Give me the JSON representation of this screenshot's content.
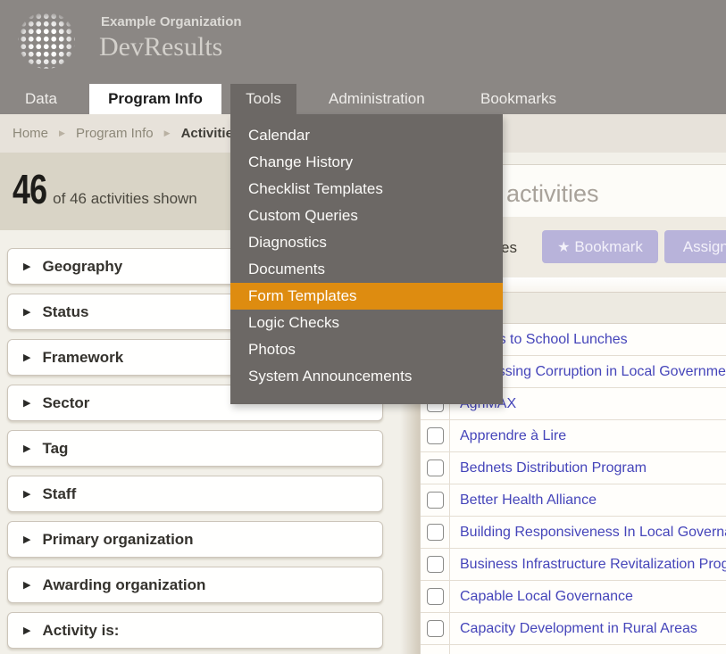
{
  "colors": {
    "header_bg": "#8B8784",
    "menu_bg": "#6C6865",
    "accent_orange": "#DE8C10",
    "link_blue": "#4545BA",
    "button_lavender": "#B8B3DA",
    "count_band_beige": "#D9D4C6",
    "page_bg": "#F2F0E9"
  },
  "header": {
    "org_name": "Example Organization",
    "product_name": "DevResults"
  },
  "nav": {
    "tabs": [
      {
        "label": "Data",
        "state": "normal"
      },
      {
        "label": "Program Info",
        "state": "active"
      },
      {
        "label": "Tools",
        "state": "open"
      },
      {
        "label": "Administration",
        "state": "normal"
      },
      {
        "label": "Bookmarks",
        "state": "normal"
      }
    ]
  },
  "breadcrumb": {
    "items": [
      "Home",
      "Program Info",
      "Activities"
    ],
    "separator": "▶"
  },
  "tools_menu": {
    "items": [
      "Calendar",
      "Change History",
      "Checklist Templates",
      "Custom Queries",
      "Diagnostics",
      "Documents",
      "Form Templates",
      "Logic Checks",
      "Photos",
      "System Announcements"
    ],
    "highlighted_item": "Form Templates"
  },
  "activity_count": {
    "number": "46",
    "caption": "of 46 activities shown"
  },
  "filters": {
    "sections": [
      "Geography",
      "Status",
      "Framework",
      "Sector",
      "Tag",
      "Staff",
      "Primary organization",
      "Awarding organization",
      "Activity is:"
    ]
  },
  "main": {
    "title_fragment": "activities",
    "toolbar_text_fragment": "es",
    "bookmark_button": {
      "icon": "star",
      "label": "Bookmark"
    },
    "assign_button": {
      "label": "Assign indicators"
    },
    "activities": [
      "Access to School Lunches",
      "Addressing Corruption in Local Government",
      "AgriMAX",
      "Apprendre à Lire",
      "Bednets Distribution Program",
      "Better Health Alliance",
      "Building Responsiveness In Local Governance",
      "Business Infrastructure Revitalization Program",
      "Capable Local Governance",
      "Capacity Development in Rural Areas"
    ]
  }
}
